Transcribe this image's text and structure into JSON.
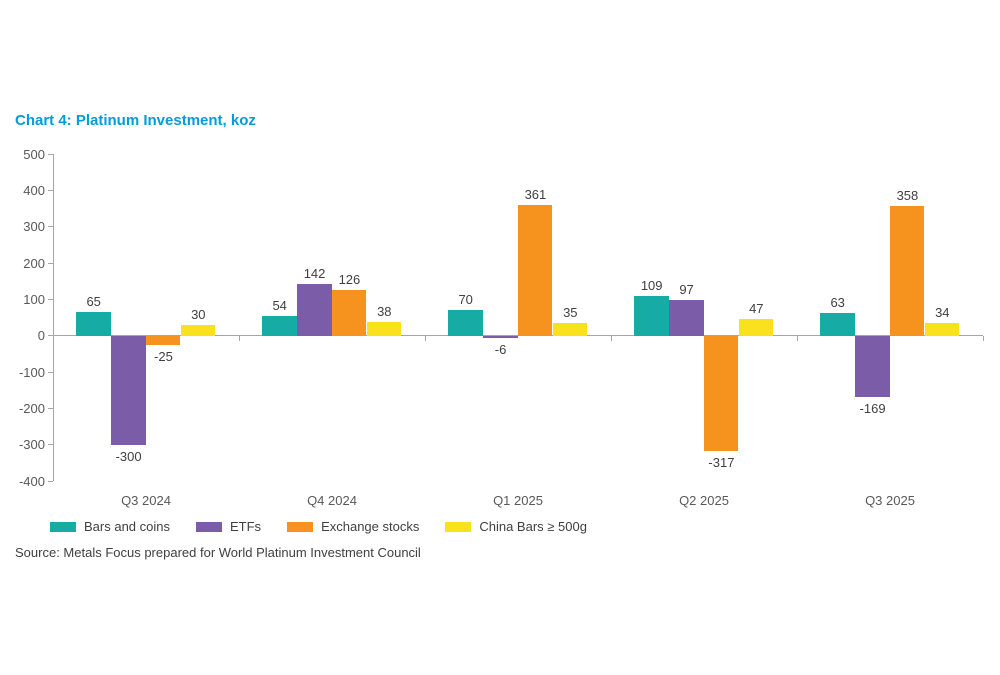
{
  "page": {
    "title": "Chart 4: Platinum Investment, koz",
    "title_color": "#009DDC",
    "source": "Source: Metals Focus prepared for World Platinum Investment Council"
  },
  "chart_data": {
    "type": "bar",
    "title": "Chart 4: Platinum Investment, koz",
    "categories": [
      "Q3 2024",
      "Q4 2024",
      "Q1 2025",
      "Q2 2025",
      "Q3 2025"
    ],
    "series": [
      {
        "name": "Bars and coins",
        "color": "#16ACA5",
        "values": [
          65,
          54,
          70,
          109,
          63
        ]
      },
      {
        "name": "ETFs",
        "color": "#7B5CA8",
        "values": [
          -300,
          142,
          -6,
          97,
          -169
        ]
      },
      {
        "name": "Exchange stocks",
        "color": "#F6931E",
        "values": [
          -25,
          126,
          361,
          -317,
          358
        ]
      },
      {
        "name": "China Bars ≥ 500g",
        "color": "#FAE11E",
        "values": [
          30,
          38,
          35,
          47,
          34
        ]
      }
    ],
    "ylabel": "",
    "xlabel": "",
    "ylim": [
      -400,
      500
    ],
    "yticks": [
      500,
      400,
      300,
      200,
      100,
      0,
      -100,
      -200,
      -300,
      -400
    ],
    "grid": false,
    "data_labels": true,
    "legend_position": "bottom",
    "axis_color": "#a6a6a6",
    "value_label_color": "#404040",
    "tick_label_color": "#595959"
  }
}
